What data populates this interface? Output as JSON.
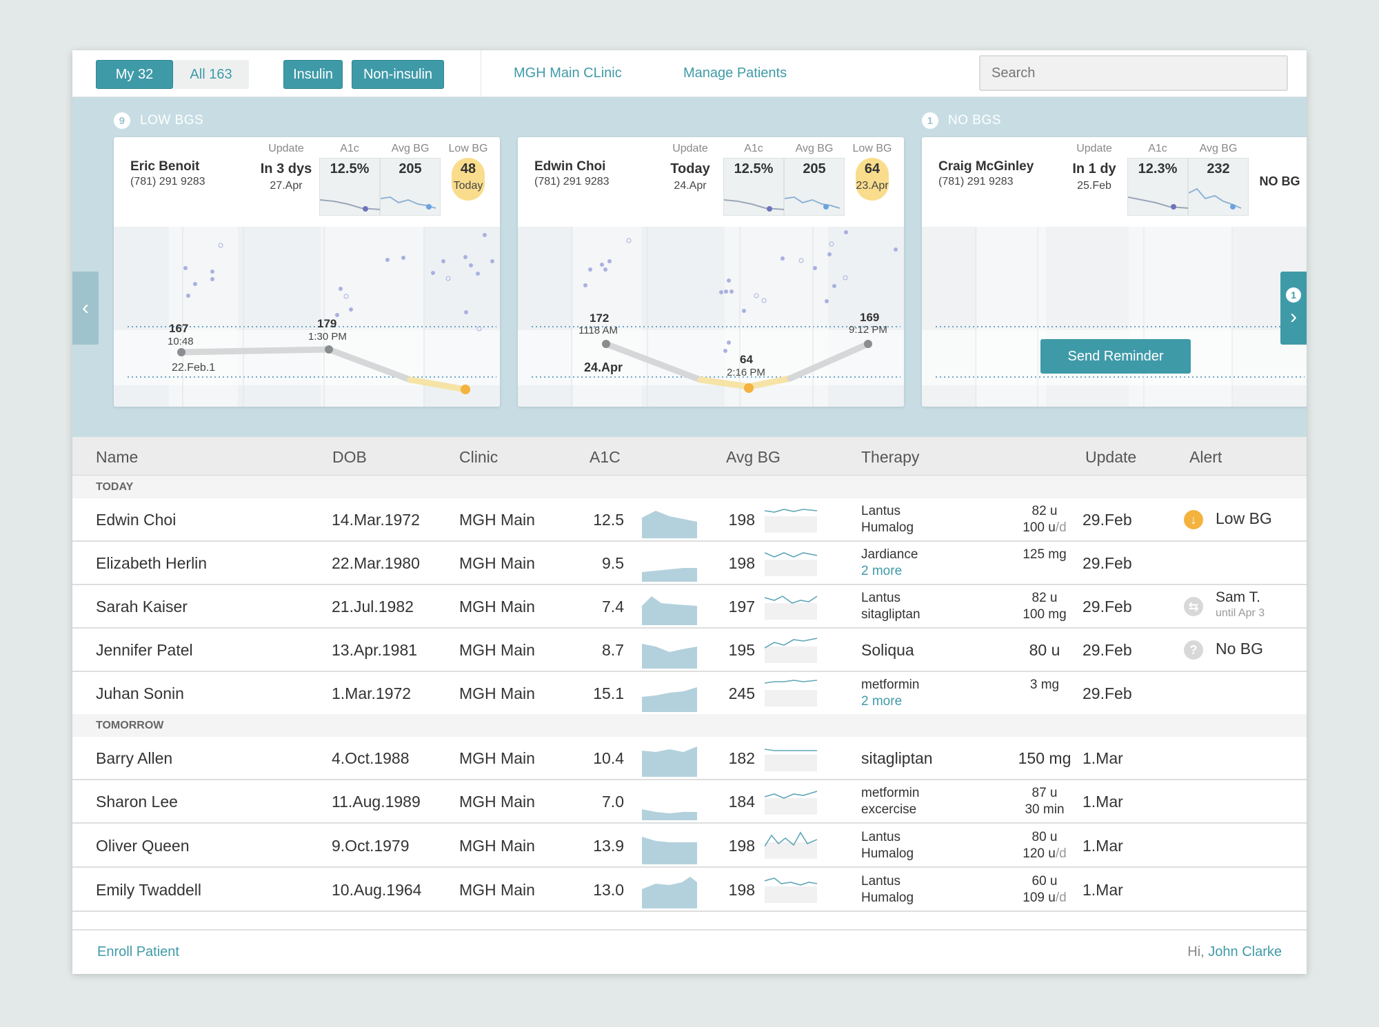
{
  "topbar": {
    "my_label": "My 32",
    "all_label": "All 163",
    "insulin_label": "Insulin",
    "noninsulin_label": "Non-insulin",
    "clinic_link": "MGH Main CLinic",
    "manage_link": "Manage Patients",
    "search_placeholder": "Search"
  },
  "carousel": {
    "low_count": "9",
    "low_title": "LOW BGS",
    "nobg_count": "1",
    "nobg_title": "NO BGS",
    "next_badge": "1",
    "labels": {
      "update": "Update",
      "a1c": "A1c",
      "avg_bg": "Avg BG",
      "low_bg": "Low BG"
    },
    "cards": [
      {
        "name": "Eric Benoit",
        "phone": "(781) 291 9283",
        "update_value": "In 3 dys",
        "update_date": "27.Apr",
        "a1c": "12.5%",
        "avg_bg": "205",
        "low_bg": "48",
        "low_date": "Today",
        "points": [
          {
            "value": "167",
            "time": "10:48"
          },
          {
            "value": "179",
            "time": "1:30 PM"
          }
        ],
        "date_label": "22.Feb.1"
      },
      {
        "name": "Edwin Choi",
        "phone": "(781) 291 9283",
        "update_value": "Today",
        "update_date": "24.Apr",
        "a1c": "12.5%",
        "avg_bg": "205",
        "low_bg": "64",
        "low_date": "23.Apr",
        "points": [
          {
            "value": "172",
            "time": "1118 AM"
          },
          {
            "value": "64",
            "time": "2:16 PM"
          },
          {
            "value": "169",
            "time": "9:12 PM"
          }
        ],
        "date_label": "24.Apr"
      },
      {
        "name": "Craig McGinley",
        "phone": "(781) 291 9283",
        "update_value": "In 1 dy",
        "update_date": "25.Feb",
        "a1c": "12.3%",
        "avg_bg": "232",
        "low_bg": "NO BG",
        "button": "Send Reminder"
      }
    ]
  },
  "table": {
    "headers": [
      "Name",
      "DOB",
      "Clinic",
      "A1C",
      "Avg BG",
      "Therapy",
      "Update",
      "Alert"
    ],
    "group_today": "TODAY",
    "group_tomorrow": "TOMORROW",
    "rows": [
      {
        "name": "Edwin Choi",
        "dob": "14.Mar.1972",
        "clinic": "MGH Main",
        "a1c": "12.5",
        "avg_bg": "198",
        "t1": "Lantus",
        "t2": "Humalog",
        "d1": "82 u",
        "d2": "100 u",
        "d2_unit": "/d",
        "update": "29.Feb",
        "alert": "Low BG",
        "alert_sub": ""
      },
      {
        "name": "Elizabeth Herlin",
        "dob": "22.Mar.1980",
        "clinic": "MGH Main",
        "a1c": "9.5",
        "avg_bg": "198",
        "t1": "Jardiance",
        "t2": "2 more",
        "d1": "125 mg",
        "d2": "",
        "d2_unit": "",
        "update": "29.Feb",
        "alert": "",
        "alert_sub": ""
      },
      {
        "name": "Sarah Kaiser",
        "dob": "21.Jul.1982",
        "clinic": "MGH Main",
        "a1c": "7.4",
        "avg_bg": "197",
        "t1": "Lantus",
        "t2": "sitagliptan",
        "d1": "82 u",
        "d2": "100 mg",
        "d2_unit": "",
        "update": "29.Feb",
        "alert": "Sam T.",
        "alert_sub": "until Apr 3"
      },
      {
        "name": "Jennifer Patel",
        "dob": "13.Apr.1981",
        "clinic": "MGH Main",
        "a1c": "8.7",
        "avg_bg": "195",
        "t1": "Soliqua",
        "t2": "",
        "d1": "80 u",
        "d2": "",
        "d2_unit": "",
        "update": "29.Feb",
        "alert": "No BG",
        "alert_sub": ""
      },
      {
        "name": "Juhan Sonin",
        "dob": "1.Mar.1972",
        "clinic": "MGH Main",
        "a1c": "15.1",
        "avg_bg": "245",
        "t1": "metformin",
        "t2": "2 more",
        "d1": "3 mg",
        "d2": "",
        "d2_unit": "",
        "update": "29.Feb",
        "alert": "",
        "alert_sub": ""
      },
      {
        "name": "Barry Allen",
        "dob": "4.Oct.1988",
        "clinic": "MGH Main",
        "a1c": "10.4",
        "avg_bg": "182",
        "t1": "sitagliptan",
        "t2": "",
        "d1": "150 mg",
        "d2": "",
        "d2_unit": "",
        "update": "1.Mar",
        "alert": "",
        "alert_sub": ""
      },
      {
        "name": "Sharon Lee",
        "dob": "11.Aug.1989",
        "clinic": "MGH Main",
        "a1c": "7.0",
        "avg_bg": "184",
        "t1": "metformin",
        "t2": "excercise",
        "d1": "87 u",
        "d2": "30 min",
        "d2_unit": "",
        "update": "1.Mar",
        "alert": "",
        "alert_sub": ""
      },
      {
        "name": "Oliver Queen",
        "dob": "9.Oct.1979",
        "clinic": "MGH Main",
        "a1c": "13.9",
        "avg_bg": "198",
        "t1": "Lantus",
        "t2": "Humalog",
        "d1": "80 u",
        "d2": "120 u",
        "d2_unit": "/d",
        "update": "1.Mar",
        "alert": "",
        "alert_sub": ""
      },
      {
        "name": "Emily Twaddell",
        "dob": "10.Aug.1964",
        "clinic": "MGH Main",
        "a1c": "13.0",
        "avg_bg": "198",
        "t1": "Lantus",
        "t2": "Humalog",
        "d1": "60 u",
        "d2": "109 u",
        "d2_unit": "/d",
        "update": "1.Mar",
        "alert": "",
        "alert_sub": ""
      }
    ]
  },
  "footer": {
    "enroll": "Enroll Patient",
    "greeting": "Hi,",
    "user": "John Clarke"
  },
  "colors": {
    "accent": "#3f9aa8",
    "carousel_bg": "#c7dde3",
    "low_alert": "#f4b23e",
    "spark_fill": "#b3d1dc"
  }
}
